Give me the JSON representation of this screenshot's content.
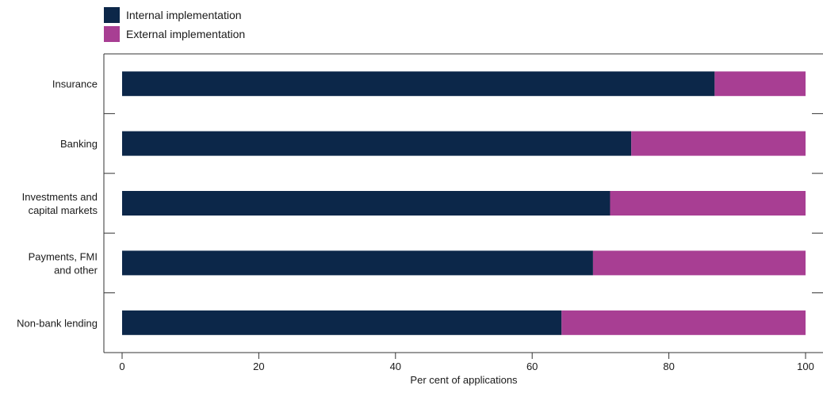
{
  "chart_data": {
    "type": "bar",
    "orientation": "horizontal",
    "stacked": true,
    "categories": [
      [
        "Insurance"
      ],
      [
        "Banking"
      ],
      [
        "Investments and",
        "capital markets"
      ],
      [
        "Payments, FMI",
        "and other"
      ],
      [
        "Non-bank lending"
      ]
    ],
    "series": [
      {
        "name": "Internal implementation",
        "color": "#0c2749",
        "values": [
          86.7,
          74.5,
          71.4,
          68.9,
          64.3
        ]
      },
      {
        "name": "External implementation",
        "color": "#a83e93",
        "values": [
          13.3,
          25.5,
          28.6,
          31.1,
          35.7
        ]
      }
    ],
    "xlabel": "Per cent of applications",
    "xlim": [
      0,
      100
    ],
    "xticks": [
      0,
      20,
      40,
      60,
      80,
      100
    ],
    "legend": "top-left",
    "grid": false
  }
}
